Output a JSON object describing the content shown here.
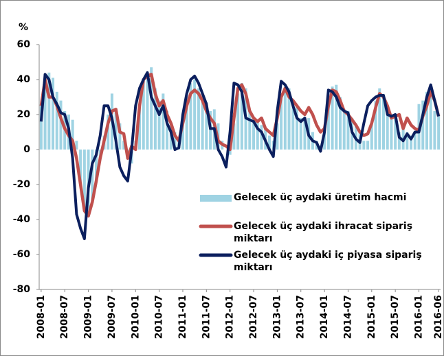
{
  "chart_data": {
    "type": "combo",
    "y_label": "%",
    "ylim": [
      -80,
      60
    ],
    "yticks": [
      -80,
      -60,
      -40,
      -20,
      0,
      20,
      40,
      60
    ],
    "categories": [
      "2008-01",
      null,
      null,
      null,
      null,
      null,
      "2008-07",
      null,
      null,
      null,
      null,
      null,
      "2009-01",
      null,
      null,
      null,
      null,
      null,
      "2009-07",
      null,
      null,
      null,
      null,
      null,
      "2010-01",
      null,
      null,
      null,
      null,
      null,
      "2010-07",
      null,
      null,
      null,
      null,
      null,
      "2011-01",
      null,
      null,
      null,
      null,
      null,
      "2011-07",
      null,
      null,
      null,
      null,
      null,
      "2012-01",
      null,
      null,
      null,
      null,
      null,
      "2012-07",
      null,
      null,
      null,
      null,
      null,
      "2013-01",
      null,
      null,
      null,
      null,
      null,
      "2013-07",
      null,
      null,
      null,
      null,
      null,
      "2014-01",
      null,
      null,
      null,
      null,
      null,
      "2014-07",
      null,
      null,
      null,
      null,
      null,
      "2015-01",
      null,
      null,
      null,
      null,
      null,
      "2015-07",
      null,
      null,
      null,
      null,
      null,
      "2016-01",
      null,
      null,
      null,
      null,
      "2016-06"
    ],
    "series": [
      {
        "name": "Gelecek üç aydaki üretim hacmi",
        "type": "bar",
        "color": "#9fd3e3",
        "values": [
          25,
          43,
          44,
          41,
          33,
          28,
          22,
          20,
          17,
          5,
          -20,
          -35,
          -38,
          -30,
          -18,
          -5,
          8,
          20,
          32,
          22,
          15,
          5,
          -5,
          -8,
          5,
          25,
          40,
          44,
          47,
          35,
          28,
          32,
          22,
          15,
          10,
          5,
          20,
          30,
          38,
          40,
          35,
          28,
          27,
          22,
          23,
          15,
          5,
          0,
          -3,
          15,
          32,
          38,
          35,
          22,
          17,
          16,
          14,
          12,
          8,
          5,
          15,
          30,
          36,
          35,
          28,
          25,
          18,
          17,
          18,
          10,
          5,
          2,
          10,
          25,
          36,
          37,
          30,
          23,
          22,
          18,
          14,
          10,
          5,
          5,
          15,
          28,
          35,
          30,
          25,
          20,
          20,
          10,
          12,
          10,
          8,
          10,
          26,
          28,
          33,
          30,
          22,
          19
        ]
      },
      {
        "name": "Gelecek üç aydaki ihracat sipariş miktarı",
        "type": "line",
        "color": "#c0504d",
        "values": [
          25,
          40,
          30,
          30,
          25,
          18,
          12,
          8,
          5,
          -5,
          -20,
          -35,
          -38,
          -30,
          -18,
          -5,
          5,
          15,
          22,
          23,
          10,
          9,
          -5,
          2,
          0,
          25,
          40,
          42,
          43,
          32,
          25,
          28,
          20,
          15,
          8,
          5,
          15,
          25,
          32,
          34,
          32,
          28,
          22,
          18,
          15,
          5,
          3,
          2,
          0,
          18,
          35,
          37,
          32,
          22,
          18,
          16,
          18,
          12,
          10,
          8,
          18,
          30,
          35,
          30,
          28,
          25,
          22,
          20,
          24,
          20,
          14,
          10,
          12,
          25,
          34,
          33,
          28,
          22,
          20,
          17,
          14,
          10,
          8,
          9,
          15,
          24,
          32,
          30,
          25,
          18,
          19,
          20,
          12,
          18,
          14,
          12,
          11,
          19,
          25,
          33,
          28,
          19
        ]
      },
      {
        "name": "Gelecek üç aydaki iç piyasa sipariş miktarı",
        "type": "line",
        "color": "#0b1f5e",
        "values": [
          16,
          43,
          40,
          30,
          26,
          21,
          20,
          12,
          -5,
          -37,
          -45,
          -51,
          -22,
          -8,
          -3,
          8,
          25,
          25,
          18,
          5,
          -10,
          -15,
          -18,
          0,
          25,
          35,
          40,
          44,
          30,
          25,
          20,
          25,
          15,
          10,
          0,
          1,
          20,
          32,
          40,
          42,
          38,
          32,
          26,
          12,
          12,
          0,
          -4,
          -10,
          10,
          38,
          37,
          33,
          18,
          17,
          16,
          12,
          10,
          5,
          0,
          -4,
          22,
          39,
          37,
          33,
          25,
          18,
          16,
          18,
          8,
          5,
          4,
          -1,
          10,
          34,
          33,
          30,
          24,
          22,
          21,
          10,
          6,
          4,
          15,
          25,
          28,
          30,
          31,
          31,
          20,
          19,
          20,
          7,
          5,
          9,
          6,
          10,
          10,
          20,
          30,
          37,
          28,
          19
        ]
      }
    ]
  }
}
